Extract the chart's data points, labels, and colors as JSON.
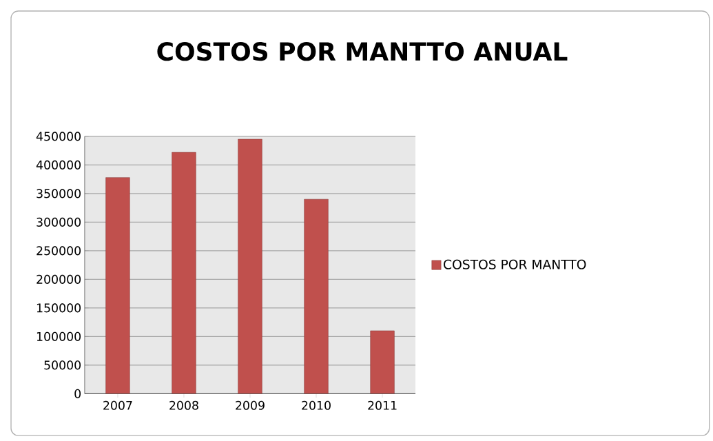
{
  "chart_data": {
    "type": "bar",
    "title": "COSTOS POR MANTTO ANUAL",
    "categories": [
      "2007",
      "2008",
      "2009",
      "2010",
      "2011"
    ],
    "series": [
      {
        "name": "COSTOS POR MANTTO",
        "color": "#c0504d",
        "values": [
          378000,
          422000,
          445000,
          340000,
          110000
        ]
      }
    ],
    "ylim": [
      0,
      450000
    ],
    "yticks": [
      0,
      50000,
      100000,
      150000,
      200000,
      250000,
      300000,
      350000,
      400000,
      450000
    ],
    "grid": "y",
    "legend": "right"
  }
}
